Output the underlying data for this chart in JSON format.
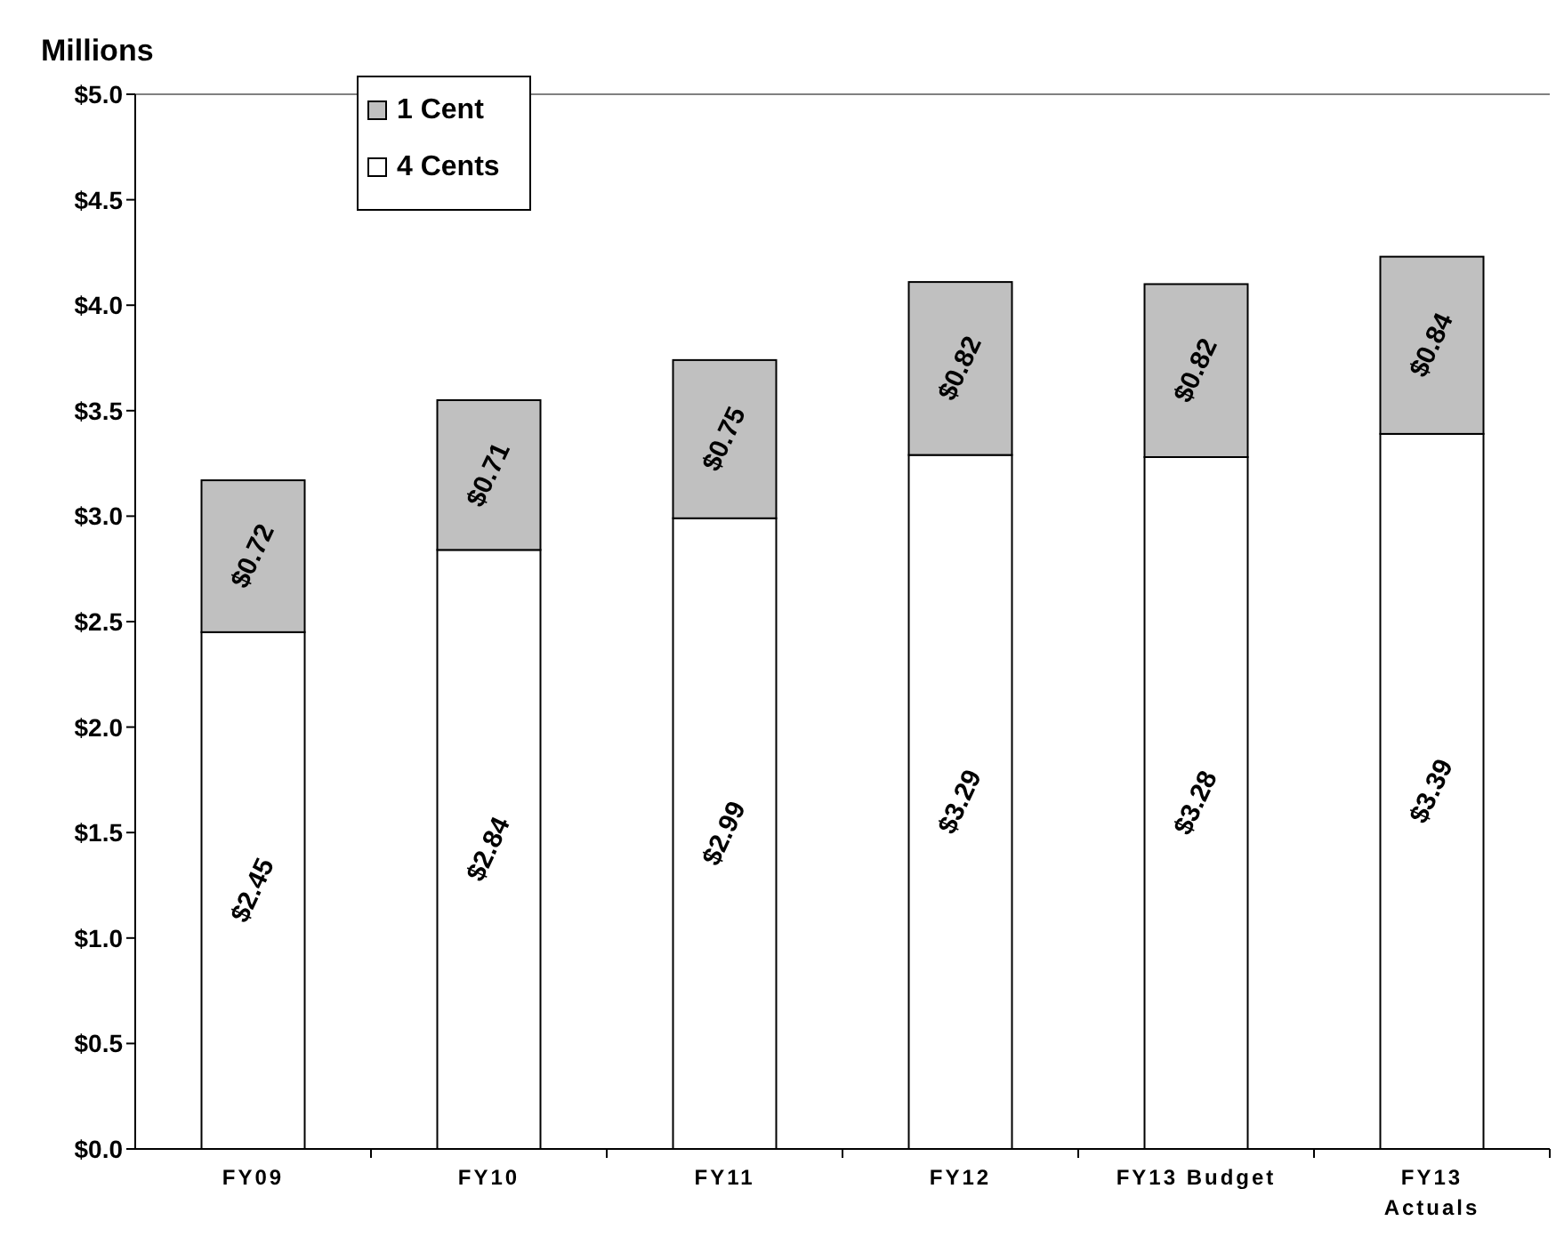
{
  "chart_data": {
    "type": "bar",
    "stacked": true,
    "ylabel": "Millions",
    "categories": [
      "FY09",
      "FY10",
      "FY11",
      "FY12",
      "FY13 Budget",
      "FY13 Actuals"
    ],
    "series": [
      {
        "name": "4 Cents",
        "color": "#ffffff",
        "values": [
          2.45,
          2.84,
          2.99,
          3.29,
          3.28,
          3.39
        ],
        "value_labels": [
          "$2.45",
          "$2.84",
          "$2.99",
          "$3.29",
          "$3.28",
          "$3.39"
        ]
      },
      {
        "name": "1 Cent",
        "color": "#c0c0c0",
        "values": [
          0.72,
          0.71,
          0.75,
          0.82,
          0.82,
          0.84
        ],
        "value_labels": [
          "$0.72",
          "$0.71",
          "$0.75",
          "$0.82",
          "$0.82",
          "$0.84"
        ]
      }
    ],
    "ylim": [
      0,
      5
    ],
    "yticks": [
      {
        "value": 0,
        "label": "$0.0"
      },
      {
        "value": 0.5,
        "label": "$0.5"
      },
      {
        "value": 1,
        "label": "$1.0"
      },
      {
        "value": 1.5,
        "label": "$1.5"
      },
      {
        "value": 2,
        "label": "$2.0"
      },
      {
        "value": 2.5,
        "label": "$2.5"
      },
      {
        "value": 3,
        "label": "$3.0"
      },
      {
        "value": 3.5,
        "label": "$3.5"
      },
      {
        "value": 4,
        "label": "$4.0"
      },
      {
        "value": 4.5,
        "label": "$4.5"
      },
      {
        "value": 5,
        "label": "$5.0"
      }
    ],
    "legend": "top left"
  }
}
